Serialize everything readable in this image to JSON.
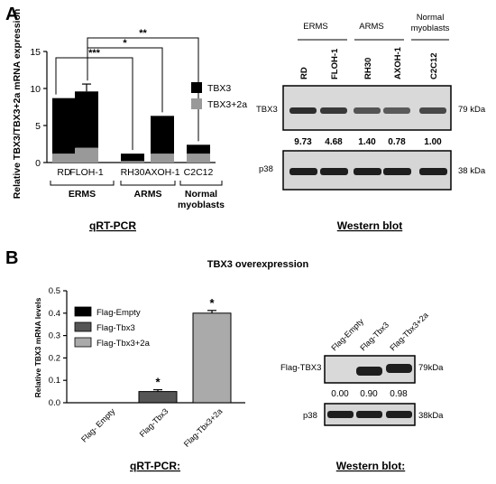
{
  "panel_letters": [
    "A",
    "B"
  ],
  "colors": {
    "tbx3": "#000000",
    "tbx3_2a": "#999999",
    "flag_empty": "#000000",
    "flag_tbx3": "#555555",
    "flag_tbx3_2a": "#aaaaaa",
    "blot_bg": "#d9d9d9",
    "band": "#1e1e1e"
  },
  "chart_data": [
    {
      "type": "bar",
      "stacked": true,
      "categories": [
        "RD",
        "FLOH-1",
        "RH30",
        "AXOH-1",
        "C2C12"
      ],
      "series": [
        {
          "name": "TBX3",
          "values": [
            7.5,
            7.6,
            1.0,
            5.1,
            1.2
          ],
          "errors": [
            0,
            1.0,
            0,
            0,
            0
          ]
        },
        {
          "name": "TBX3+2a",
          "values": [
            1.2,
            2.0,
            0.2,
            1.2,
            1.2
          ]
        }
      ],
      "totals": [
        8.7,
        9.6,
        1.2,
        6.3,
        2.4
      ],
      "ylabel": "Relative TBX3/TBX3+2a mRNA expression",
      "ylim": [
        0,
        15
      ],
      "yticks": [
        "0",
        "5",
        "10",
        "15"
      ],
      "groups": [
        {
          "label": "ERMS",
          "members": [
            "RD",
            "FLOH-1"
          ]
        },
        {
          "label": "ARMS",
          "members": [
            "RH30",
            "AXOH-1"
          ]
        },
        {
          "label": "Normal myoblasts",
          "members": [
            "C2C12"
          ]
        }
      ],
      "significance": [
        "**",
        "*",
        "***"
      ],
      "caption": "qRT-PCR",
      "legend_position": "right",
      "grid": false
    },
    {
      "type": "bar",
      "title": "TBX3 overexpression",
      "categories": [
        "Flag- Empty",
        "Flag-Tbx3",
        "Flag-Tbx3+2a"
      ],
      "values": [
        0.0,
        0.05,
        0.4
      ],
      "errors": [
        0,
        0.008,
        0.012
      ],
      "series_names": [
        "Flag-Empty",
        "Flag-Tbx3",
        "Flag-Tbx3+2a"
      ],
      "annotations": [
        "*",
        "*"
      ],
      "ylabel": "Relative TBX3 mRNA levels",
      "ylim": [
        0,
        0.5
      ],
      "yticks": [
        "0.0",
        "0.1",
        "0.2",
        "0.3",
        "0.4",
        "0.5"
      ],
      "caption": "qRT-PCR:",
      "legend_position": "top-left",
      "grid": false
    }
  ],
  "blot_a": {
    "groups": [
      "ERMS",
      "ARMS",
      "Normal",
      "myoblasts"
    ],
    "lanes": [
      "RD",
      "FLOH-1",
      "RH30",
      "AXOH-1",
      "C2C12"
    ],
    "row_labels": [
      "TBX3",
      "p38"
    ],
    "sizes": [
      "79 kDa",
      "38 kDa"
    ],
    "ratios": [
      "9.73",
      "4.68",
      "1.40",
      "0.78",
      "1.00"
    ],
    "tbx3_intensity": [
      0.95,
      0.85,
      0.6,
      0.55,
      0.7
    ],
    "caption": "Western blot"
  },
  "blot_b": {
    "lanes": [
      "Flag-Empty",
      "Flag-Tbx3",
      "Flag-Tbx3+2a"
    ],
    "row_labels": [
      "Flag-TBX3",
      "p38"
    ],
    "sizes": [
      "79kDa",
      "38kDa"
    ],
    "ratios": [
      "0.00",
      "0.90",
      "0.98"
    ],
    "caption": "Western blot:"
  }
}
